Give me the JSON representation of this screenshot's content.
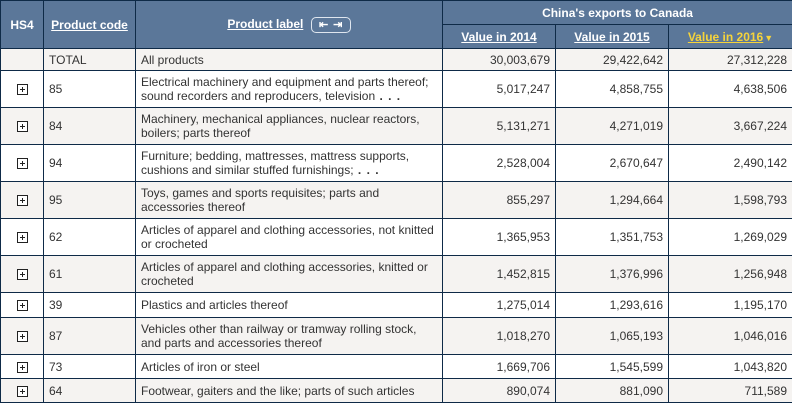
{
  "header": {
    "hs4": "HS4",
    "product_code": "Product code",
    "product_label": "Product label",
    "label_toggle_icons": {
      "collapse": "⇤",
      "expand": "⇥"
    },
    "group_title": "China's exports to Canada",
    "value_columns": [
      "Value in 2014",
      "Value in 2015",
      "Value in 2016"
    ],
    "sort_indicator": "▼",
    "active_sort_color": "#f5d33b"
  },
  "colors": {
    "header_bg": "#5b7799",
    "border": "#0e2a47",
    "row_odd_bg": "#f5f3f1",
    "row_even_bg": "#ffffff",
    "text": "#333333"
  },
  "rows": [
    {
      "expandable": false,
      "code": "TOTAL",
      "label": "All products",
      "ellipsis": "",
      "v2014": "30,003,679",
      "v2015": "29,422,642",
      "v2016": "27,312,228"
    },
    {
      "expandable": true,
      "code": "85",
      "label": "Electrical machinery and equipment and parts thereof; sound recorders and reproducers, television",
      "ellipsis": " . . .",
      "v2014": "5,017,247",
      "v2015": "4,858,755",
      "v2016": "4,638,506"
    },
    {
      "expandable": true,
      "code": "84",
      "label": "Machinery, mechanical appliances, nuclear reactors, boilers; parts thereof",
      "ellipsis": "",
      "v2014": "5,131,271",
      "v2015": "4,271,019",
      "v2016": "3,667,224"
    },
    {
      "expandable": true,
      "code": "94",
      "label": "Furniture; bedding, mattresses, mattress supports, cushions and similar stuffed furnishings;",
      "ellipsis": " . . .",
      "v2014": "2,528,004",
      "v2015": "2,670,647",
      "v2016": "2,490,142"
    },
    {
      "expandable": true,
      "code": "95",
      "label": "Toys, games and sports requisites; parts and accessories thereof",
      "ellipsis": "",
      "v2014": "855,297",
      "v2015": "1,294,664",
      "v2016": "1,598,793"
    },
    {
      "expandable": true,
      "code": "62",
      "label": "Articles of apparel and clothing accessories, not knitted or crocheted",
      "ellipsis": "",
      "v2014": "1,365,953",
      "v2015": "1,351,753",
      "v2016": "1,269,029"
    },
    {
      "expandable": true,
      "code": "61",
      "label": "Articles of apparel and clothing accessories, knitted or crocheted",
      "ellipsis": "",
      "v2014": "1,452,815",
      "v2015": "1,376,996",
      "v2016": "1,256,948"
    },
    {
      "expandable": true,
      "code": "39",
      "label": "Plastics and articles thereof",
      "ellipsis": "",
      "v2014": "1,275,014",
      "v2015": "1,293,616",
      "v2016": "1,195,170"
    },
    {
      "expandable": true,
      "code": "87",
      "label": "Vehicles other than railway or tramway rolling stock, and parts and accessories thereof",
      "ellipsis": "",
      "v2014": "1,018,270",
      "v2015": "1,065,193",
      "v2016": "1,046,016"
    },
    {
      "expandable": true,
      "code": "73",
      "label": "Articles of iron or steel",
      "ellipsis": "",
      "v2014": "1,669,706",
      "v2015": "1,545,599",
      "v2016": "1,043,820"
    },
    {
      "expandable": true,
      "code": "64",
      "label": "Footwear, gaiters and the like; parts of such articles",
      "ellipsis": "",
      "v2014": "890,074",
      "v2015": "881,090",
      "v2016": "711,589"
    }
  ]
}
